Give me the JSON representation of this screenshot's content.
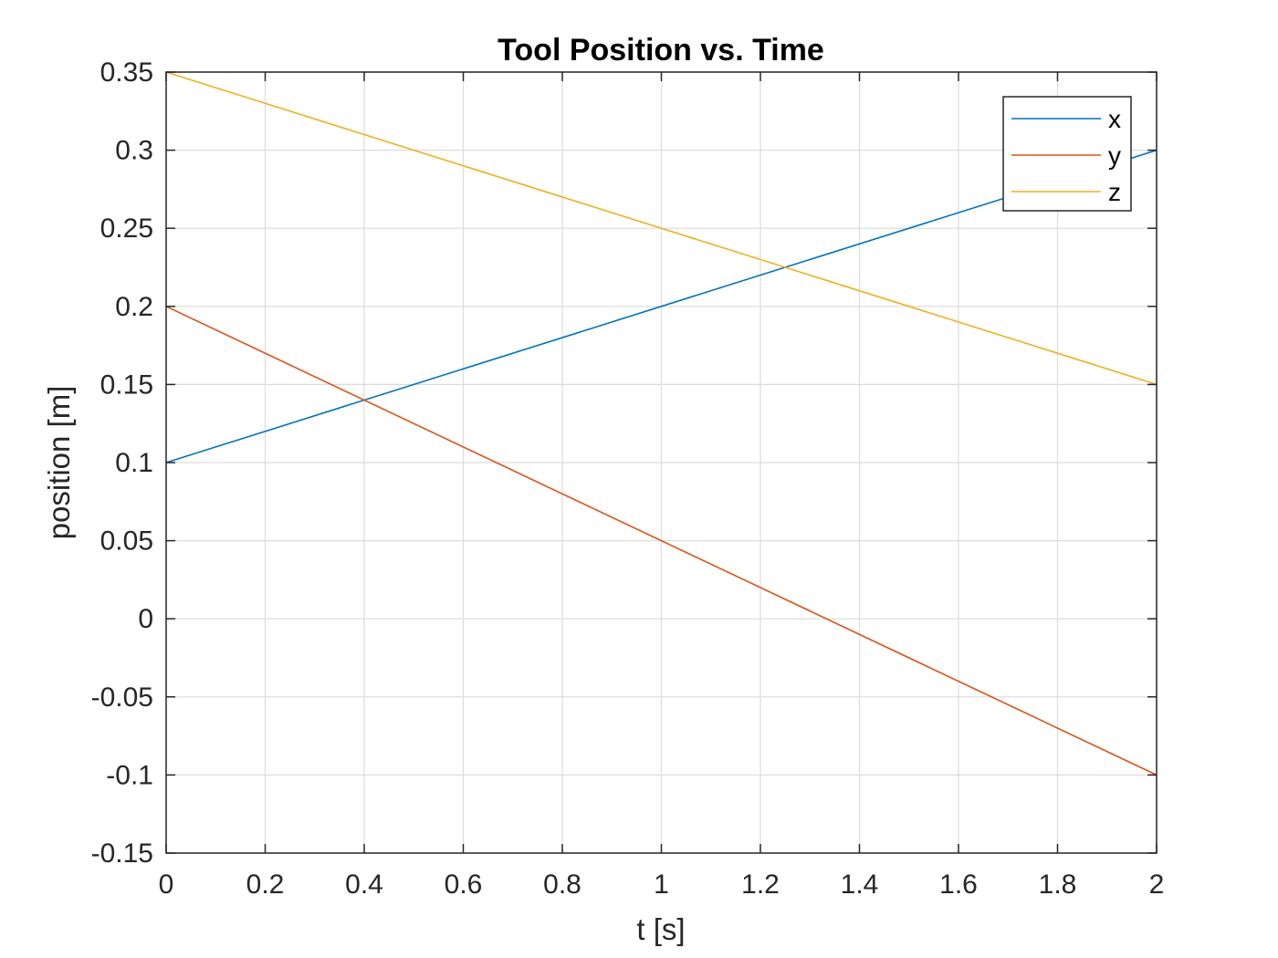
{
  "chart_data": {
    "type": "line",
    "title": "Tool Position vs. Time",
    "xlabel": "t [s]",
    "ylabel": "position [m]",
    "xlim": [
      0,
      2
    ],
    "ylim": [
      -0.15,
      0.35
    ],
    "xticks": [
      0,
      0.2,
      0.4,
      0.6,
      0.8,
      1,
      1.2,
      1.4,
      1.6,
      1.8,
      2
    ],
    "xtick_labels": [
      "0",
      "0.2",
      "0.4",
      "0.6",
      "0.8",
      "1",
      "1.2",
      "1.4",
      "1.6",
      "1.8",
      "2"
    ],
    "yticks": [
      -0.15,
      -0.1,
      -0.05,
      0,
      0.05,
      0.1,
      0.15,
      0.2,
      0.25,
      0.3,
      0.35
    ],
    "ytick_labels": [
      "-0.15",
      "-0.1",
      "-0.05",
      "0",
      "0.05",
      "0.1",
      "0.15",
      "0.2",
      "0.25",
      "0.3",
      "0.35"
    ],
    "grid": true,
    "legend_position": "top-right",
    "series": [
      {
        "name": "x",
        "color": "#0072BD",
        "x": [
          0,
          2
        ],
        "y": [
          0.1,
          0.3
        ]
      },
      {
        "name": "y",
        "color": "#D95319",
        "x": [
          0,
          2
        ],
        "y": [
          0.2,
          -0.1
        ]
      },
      {
        "name": "z",
        "color": "#EDB120",
        "x": [
          0,
          2
        ],
        "y": [
          0.35,
          0.15
        ]
      }
    ]
  }
}
